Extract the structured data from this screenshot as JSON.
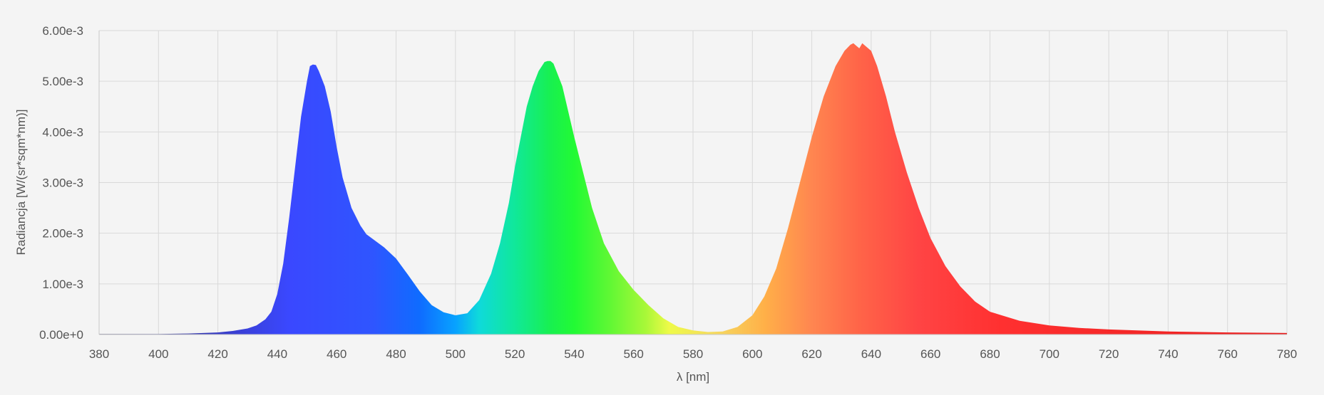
{
  "chart_data": {
    "type": "area",
    "title": "",
    "xlabel": "λ [nm]",
    "ylabel": "Radiancja [W/(sr*sqm*nm)]",
    "xlim": [
      380,
      780
    ],
    "ylim": [
      0,
      0.006
    ],
    "grid": true,
    "legend": "none",
    "x_ticks": [
      380,
      400,
      420,
      440,
      460,
      480,
      500,
      520,
      540,
      560,
      580,
      600,
      620,
      640,
      660,
      680,
      700,
      720,
      740,
      760,
      780
    ],
    "x_tick_labels": [
      "380",
      "400",
      "420",
      "440",
      "460",
      "480",
      "500",
      "520",
      "540",
      "560",
      "580",
      "600",
      "620",
      "640",
      "660",
      "680",
      "700",
      "720",
      "740",
      "760",
      "780"
    ],
    "y_ticks": [
      0,
      0.001,
      0.002,
      0.003,
      0.004,
      0.005,
      0.006
    ],
    "y_tick_labels": [
      "0.00e+0",
      "1.00e-3",
      "2.00e-3",
      "3.00e-3",
      "4.00e-3",
      "5.00e-3",
      "6.00e-3"
    ],
    "fill_gradient": "visible-spectrum",
    "series": [
      {
        "x": [
          380,
          390,
          400,
          410,
          420,
          425,
          430,
          433,
          436,
          438,
          440,
          442,
          444,
          446,
          448,
          450,
          451,
          452,
          453,
          454,
          456,
          458,
          460,
          462,
          465,
          468,
          470,
          473,
          476,
          480,
          484,
          488,
          492,
          496,
          500,
          504,
          508,
          512,
          515,
          518,
          520,
          522,
          524,
          526,
          528,
          530,
          531,
          532,
          533,
          534,
          536,
          538,
          540,
          543,
          546,
          550,
          555,
          560,
          565,
          570,
          575,
          580,
          585,
          590,
          595,
          600,
          604,
          608,
          612,
          616,
          620,
          624,
          628,
          631,
          633,
          634,
          635,
          636,
          637,
          638,
          640,
          642,
          645,
          648,
          652,
          656,
          660,
          665,
          670,
          675,
          680,
          690,
          700,
          710,
          720,
          740,
          760,
          780
        ],
        "y": [
          1e-05,
          1e-05,
          1e-05,
          2e-05,
          4e-05,
          7e-05,
          0.00012,
          0.00018,
          0.0003,
          0.00045,
          0.0008,
          0.0014,
          0.0023,
          0.0033,
          0.0043,
          0.005,
          0.0053,
          0.00533,
          0.00532,
          0.0052,
          0.0049,
          0.0044,
          0.0037,
          0.0031,
          0.0025,
          0.00215,
          0.00198,
          0.00185,
          0.00172,
          0.0015,
          0.00118,
          0.00085,
          0.00058,
          0.00044,
          0.00038,
          0.00042,
          0.00068,
          0.0012,
          0.0018,
          0.0026,
          0.0033,
          0.0039,
          0.0045,
          0.0049,
          0.0052,
          0.00538,
          0.0054,
          0.0054,
          0.00535,
          0.0052,
          0.0049,
          0.0044,
          0.0039,
          0.0032,
          0.0025,
          0.0018,
          0.00125,
          0.00088,
          0.00058,
          0.00032,
          0.00015,
          8e-05,
          5e-05,
          6e-05,
          0.00015,
          0.00038,
          0.00075,
          0.0013,
          0.0021,
          0.003,
          0.0039,
          0.0047,
          0.0053,
          0.0056,
          0.00572,
          0.00575,
          0.0057,
          0.00565,
          0.00575,
          0.0057,
          0.0056,
          0.0053,
          0.0047,
          0.004,
          0.0032,
          0.0025,
          0.0019,
          0.00135,
          0.00095,
          0.00065,
          0.00045,
          0.00027,
          0.00018,
          0.00013,
          0.0001,
          6e-05,
          4e-05,
          3e-05
        ]
      }
    ]
  }
}
